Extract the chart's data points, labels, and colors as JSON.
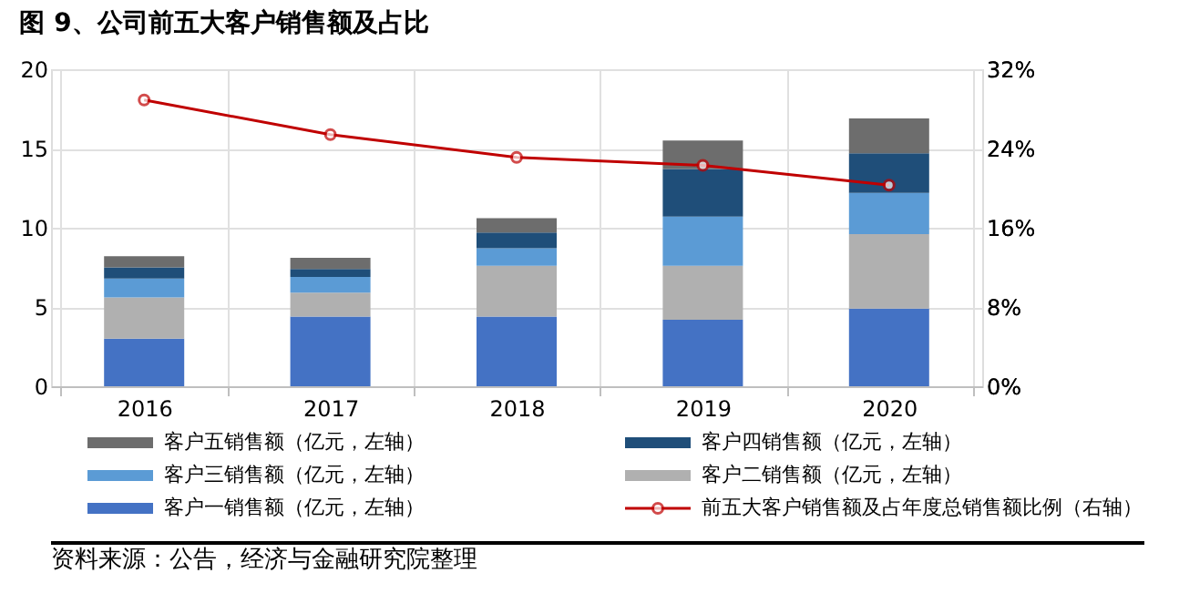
{
  "chart_data": {
    "type": "bar",
    "title": "图 9、公司前五大客户销售额及占比",
    "categories": [
      "2016",
      "2017",
      "2018",
      "2019",
      "2020"
    ],
    "stacked": true,
    "series": [
      {
        "name": "客户一销售额（亿元，左轴）",
        "color": "#4472c4",
        "values": [
          3.0,
          4.4,
          4.4,
          4.2,
          4.9
        ]
      },
      {
        "name": "客户二销售额（亿元，左轴）",
        "color": "#b0b0b0",
        "values": [
          2.6,
          1.5,
          3.2,
          3.4,
          4.7
        ]
      },
      {
        "name": "客户三销售额（亿元，左轴）",
        "color": "#5b9bd5",
        "values": [
          1.2,
          1.0,
          1.1,
          3.1,
          2.6
        ]
      },
      {
        "name": "客户四销售额（亿元，左轴）",
        "color": "#1f4e79",
        "values": [
          0.7,
          0.5,
          1.0,
          3.0,
          2.5
        ]
      },
      {
        "name": "客户五销售额（亿元，左轴）",
        "color": "#6d6d6d",
        "values": [
          0.7,
          0.7,
          0.9,
          1.8,
          2.2
        ]
      },
      {
        "name": "前五大客户销售额及占年度总销售额比例（右轴）",
        "color": "#c00000",
        "type": "line",
        "axis": "y2",
        "marker": "circle",
        "values": [
          28.9,
          25.4,
          23.1,
          22.3,
          20.3
        ]
      }
    ],
    "ylim": [
      0,
      20
    ],
    "yticks": [
      0,
      5,
      10,
      15,
      20
    ],
    "y2lim": [
      0,
      32
    ],
    "y2ticks": [
      {
        "value": 0,
        "label": "0%"
      },
      {
        "value": 8,
        "label": "8%"
      },
      {
        "value": 16,
        "label": "16%"
      },
      {
        "value": 24,
        "label": "24%"
      },
      {
        "value": 32,
        "label": "32%"
      }
    ],
    "grid": true,
    "legend": "bottom",
    "annotations": [
      "资料来源：公告，经济与金融研究院整理"
    ]
  }
}
